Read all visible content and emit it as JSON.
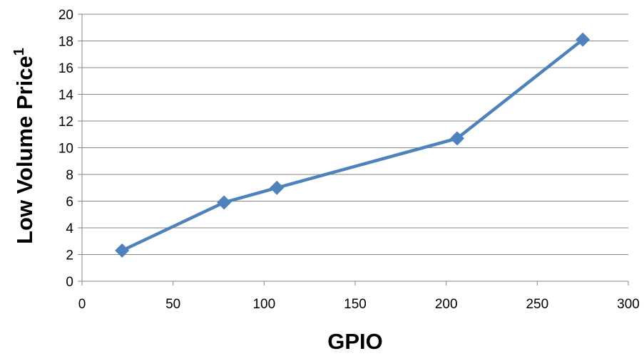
{
  "chart_data": {
    "type": "line",
    "title": "",
    "xlabel": "GPIO",
    "ylabel": "Low Volume Price",
    "ylabel_superscript": "1",
    "xlim": [
      0,
      300
    ],
    "ylim": [
      0,
      20
    ],
    "x_ticks": [
      0,
      50,
      100,
      150,
      200,
      250,
      300
    ],
    "y_ticks": [
      0,
      2,
      4,
      6,
      8,
      10,
      12,
      14,
      16,
      18,
      20
    ],
    "grid": "horizontal",
    "legend": "none",
    "series": [
      {
        "color": "#4F81BD",
        "marker": "diamond",
        "x": [
          22,
          78,
          107,
          206,
          275
        ],
        "y": [
          2.3,
          5.9,
          7.0,
          10.7,
          18.1
        ]
      }
    ]
  }
}
